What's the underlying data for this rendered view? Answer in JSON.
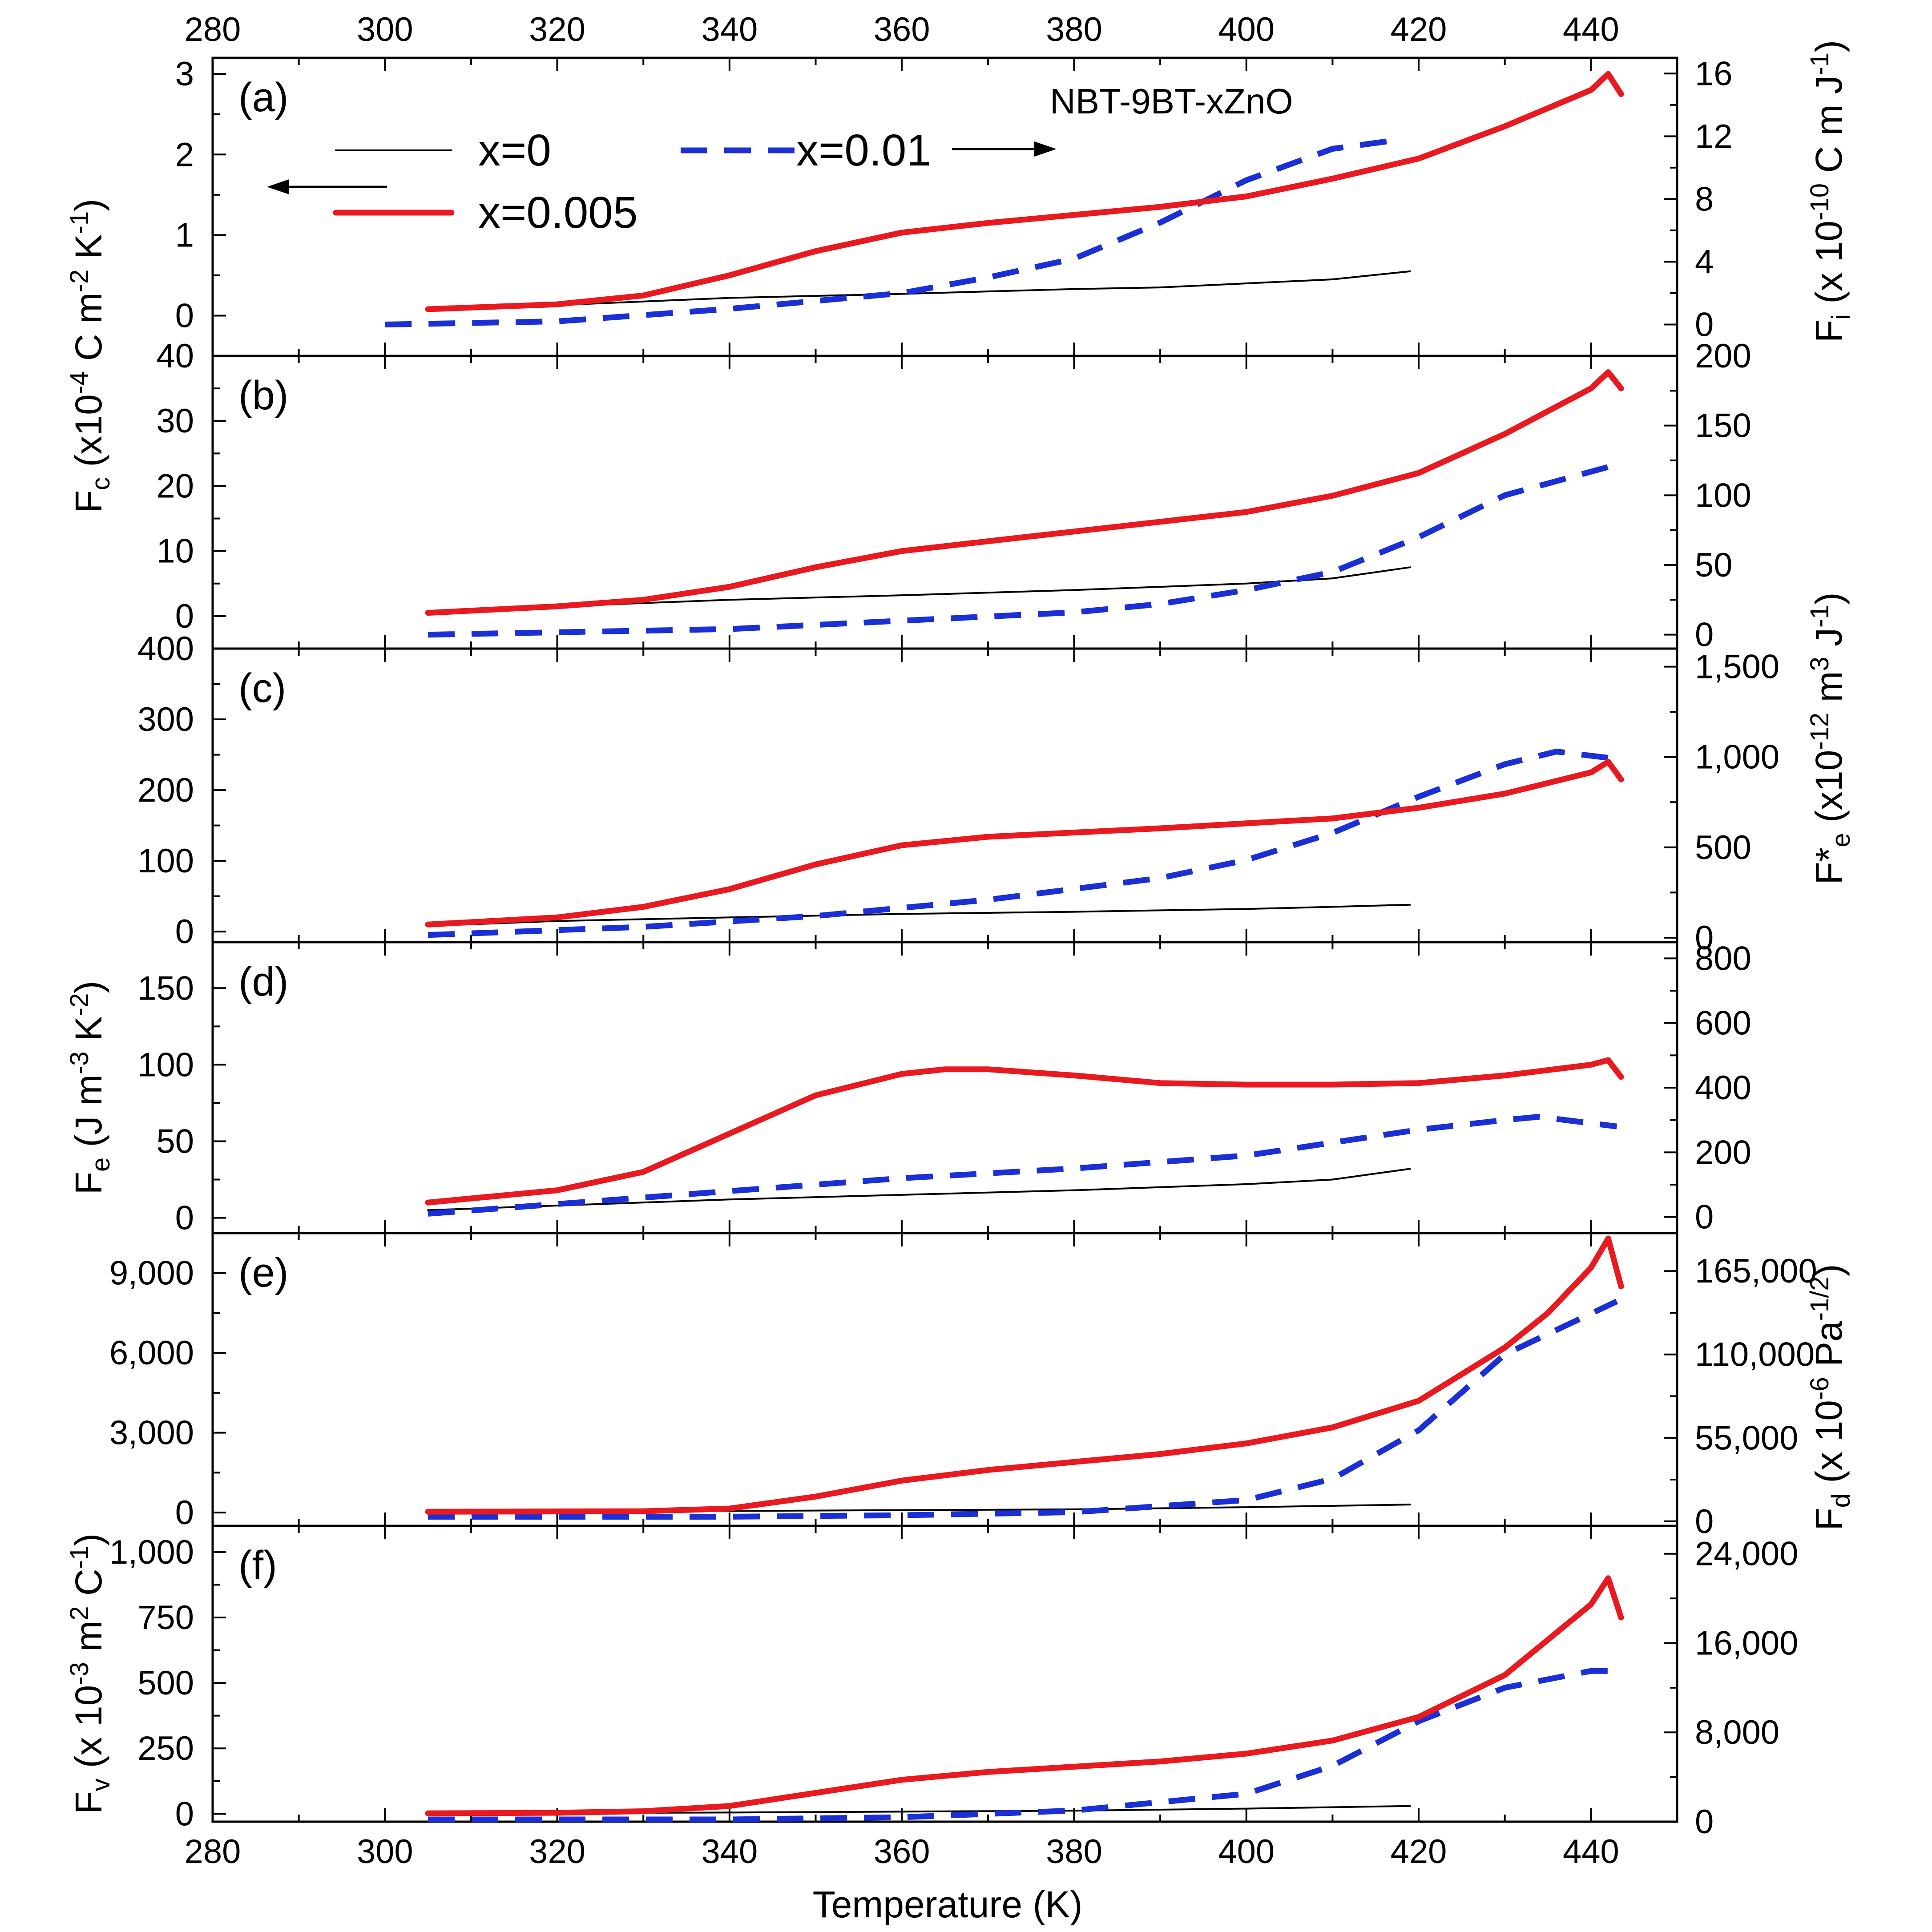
{
  "figure": {
    "title": "NBT-9BT-xZnO",
    "xlabel": "Temperature (K)",
    "x_ticks": [
      "280",
      "300",
      "320",
      "340",
      "360",
      "380",
      "400",
      "420",
      "440"
    ]
  },
  "legend": {
    "items": [
      {
        "label": "x=0",
        "color": "#000000",
        "style": "solid-thin"
      },
      {
        "label": "x=0.005",
        "color": "#e8191f",
        "style": "solid-thick"
      },
      {
        "label": "x=0.01",
        "color": "#1a2fd6",
        "style": "dashed"
      }
    ]
  },
  "chart_data": [
    {
      "panel": "(a)",
      "type": "line",
      "left_label": {
        "base": "F",
        "sub": "c",
        "unit_pre": " (x10",
        "exp": "-4",
        "unit_post": " C m",
        "exp2": "-2",
        "unit_post2": " K",
        "exp3": "-1",
        "close": ")"
      },
      "right_label": {
        "base": "F",
        "sub": "i",
        "unit_pre": " (x 10",
        "exp": "-10",
        "unit_post": " C m J",
        "exp2": "-1",
        "close": ")"
      },
      "x_range": [
        280,
        450
      ],
      "left_range": [
        -0.5,
        3.2
      ],
      "right_range": [
        -2,
        17
      ],
      "left_ticks": [
        "0",
        "1",
        "2",
        "3"
      ],
      "right_ticks": [
        "0",
        "4",
        "8",
        "12",
        "16"
      ],
      "series": [
        {
          "name": "x=0",
          "axis": "left",
          "x": [
            305,
            320,
            340,
            360,
            380,
            390,
            400,
            410,
            419
          ],
          "y": [
            0.08,
            0.13,
            0.22,
            0.27,
            0.33,
            0.35,
            0.4,
            0.45,
            0.55
          ]
        },
        {
          "name": "x=0.005",
          "axis": "left",
          "x": [
            305,
            320,
            330,
            340,
            350,
            360,
            370,
            380,
            390,
            400,
            410,
            420,
            430,
            440,
            442,
            443.5
          ],
          "y": [
            0.08,
            0.14,
            0.25,
            0.5,
            0.8,
            1.03,
            1.15,
            1.25,
            1.35,
            1.48,
            1.7,
            1.95,
            2.35,
            2.8,
            3.0,
            2.75
          ]
        },
        {
          "name": "x=0.01",
          "axis": "right",
          "x": [
            300,
            320,
            340,
            360,
            370,
            380,
            390,
            400,
            410,
            418
          ],
          "y": [
            0.0,
            0.2,
            1.0,
            2.0,
            3.0,
            4.2,
            6.5,
            9.2,
            11.2,
            11.8
          ]
        }
      ]
    },
    {
      "panel": "(b)",
      "type": "line",
      "right_label": null,
      "x_range": [
        280,
        450
      ],
      "left_range": [
        -5,
        40
      ],
      "right_range": [
        -10,
        200
      ],
      "left_ticks": [
        "0",
        "10",
        "20",
        "30",
        "40"
      ],
      "right_ticks": [
        "0",
        "50",
        "100",
        "150",
        "200"
      ],
      "series": [
        {
          "name": "x=0",
          "axis": "left",
          "x": [
            305,
            320,
            340,
            360,
            380,
            390,
            400,
            410,
            419
          ],
          "y": [
            0.5,
            1.5,
            2.5,
            3.2,
            4.0,
            4.5,
            5.0,
            5.8,
            7.5
          ]
        },
        {
          "name": "x=0.005",
          "axis": "left",
          "x": [
            305,
            320,
            330,
            340,
            350,
            360,
            370,
            380,
            390,
            400,
            410,
            420,
            430,
            440,
            442,
            443.5
          ],
          "y": [
            0.5,
            1.5,
            2.5,
            4.5,
            7.5,
            10.0,
            11.5,
            13.0,
            14.5,
            16.0,
            18.5,
            22.0,
            28.0,
            35.0,
            37.5,
            35.0
          ]
        },
        {
          "name": "x=0.01",
          "axis": "right",
          "x": [
            305,
            340,
            360,
            380,
            390,
            400,
            410,
            420,
            430,
            443
          ],
          "y": [
            0,
            4,
            10,
            16,
            22,
            32,
            45,
            70,
            100,
            122
          ]
        }
      ]
    },
    {
      "panel": "(c)",
      "type": "line",
      "right_label": {
        "base": "F*",
        "sub": "e",
        "unit_pre": " (x10",
        "exp": "-12",
        "unit_post": " m",
        "exp2": "3",
        "unit_post2": " J",
        "exp3": "-1",
        "close": ")"
      },
      "x_range": [
        280,
        450
      ],
      "left_range": [
        -15,
        400
      ],
      "right_range": [
        -25,
        1600
      ],
      "left_ticks": [
        "0",
        "100",
        "200",
        "300",
        "400"
      ],
      "right_ticks": [
        "0",
        "500",
        "1,000",
        "1,500"
      ],
      "series": [
        {
          "name": "x=0",
          "axis": "left",
          "x": [
            305,
            320,
            340,
            360,
            380,
            390,
            400,
            410,
            419
          ],
          "y": [
            8,
            15,
            20,
            25,
            28,
            30,
            32,
            35,
            38
          ]
        },
        {
          "name": "x=0.005",
          "axis": "left",
          "x": [
            305,
            320,
            330,
            340,
            350,
            360,
            370,
            380,
            390,
            400,
            410,
            420,
            430,
            440,
            442,
            443.5
          ],
          "y": [
            10,
            20,
            35,
            60,
            95,
            122,
            134,
            140,
            146,
            153,
            160,
            175,
            195,
            225,
            240,
            215
          ]
        },
        {
          "name": "x=0.01",
          "axis": "right",
          "x": [
            305,
            330,
            350,
            370,
            390,
            400,
            410,
            420,
            430,
            436,
            443
          ],
          "y": [
            15,
            60,
            120,
            210,
            330,
            430,
            580,
            780,
            960,
            1030,
            990
          ]
        }
      ]
    },
    {
      "panel": "(d)",
      "type": "line",
      "left_label": {
        "base": "F",
        "sub": "e",
        "unit_pre": " (J m",
        "exp": "-3",
        "unit_post": " K",
        "exp2": "-2",
        "close": ")"
      },
      "right_label": null,
      "x_range": [
        280,
        450
      ],
      "left_range": [
        -10,
        180
      ],
      "right_range": [
        -50,
        850
      ],
      "left_ticks": [
        "0",
        "50",
        "100",
        "150"
      ],
      "right_ticks": [
        "0",
        "200",
        "400",
        "600",
        "800"
      ],
      "series": [
        {
          "name": "x=0",
          "axis": "left",
          "x": [
            305,
            320,
            340,
            360,
            380,
            390,
            400,
            410,
            419
          ],
          "y": [
            5,
            8,
            12,
            15,
            18,
            20,
            22,
            25,
            32
          ]
        },
        {
          "name": "x=0.005",
          "axis": "left",
          "x": [
            305,
            320,
            330,
            340,
            350,
            360,
            365,
            370,
            380,
            390,
            400,
            410,
            420,
            430,
            440,
            442,
            443.5
          ],
          "y": [
            10,
            18,
            30,
            55,
            80,
            94,
            97,
            97,
            93,
            88,
            87,
            87,
            88,
            93,
            100,
            103,
            92
          ]
        },
        {
          "name": "x=0.01",
          "axis": "right",
          "x": [
            305,
            320,
            340,
            360,
            380,
            400,
            410,
            420,
            430,
            434,
            443
          ],
          "y": [
            10,
            40,
            80,
            120,
            150,
            190,
            230,
            270,
            300,
            310,
            280
          ]
        }
      ]
    },
    {
      "panel": "(e)",
      "type": "line",
      "right_label": {
        "base": "F",
        "sub": "d",
        "unit_pre": " (x 10",
        "exp": "-6",
        "unit_post": " Pa",
        "exp2": "-1/2",
        "close": ")"
      },
      "x_range": [
        280,
        450
      ],
      "left_range": [
        -500,
        10500
      ],
      "right_range": [
        -3000,
        190000
      ],
      "left_ticks": [
        "0",
        "3,000",
        "6,000",
        "9,000"
      ],
      "right_ticks": [
        "0",
        "55,000",
        "110,000",
        "165,000"
      ],
      "series": [
        {
          "name": "x=0",
          "axis": "left",
          "x": [
            305,
            340,
            380,
            400,
            419
          ],
          "y": [
            30,
            60,
            120,
            200,
            300
          ]
        },
        {
          "name": "x=0.005",
          "axis": "left",
          "x": [
            305,
            330,
            340,
            350,
            360,
            370,
            380,
            390,
            400,
            410,
            420,
            430,
            435,
            440,
            442,
            443.5
          ],
          "y": [
            30,
            50,
            150,
            600,
            1200,
            1600,
            1900,
            2200,
            2600,
            3200,
            4200,
            6200,
            7500,
            9200,
            10300,
            8500
          ]
        },
        {
          "name": "x=0.01",
          "axis": "right",
          "x": [
            305,
            340,
            360,
            380,
            400,
            410,
            420,
            430,
            443
          ],
          "y": [
            3000,
            3000,
            4000,
            6000,
            14000,
            28000,
            60000,
            110000,
            145000
          ]
        }
      ]
    },
    {
      "panel": "(f)",
      "type": "line",
      "left_label": {
        "base": "F",
        "sub": "v",
        "unit_pre": " (x 10",
        "exp": "-3",
        "unit_post": " m",
        "exp2": "2",
        "unit_post2": " C",
        "exp3": "-1",
        "close": ")"
      },
      "right_label": null,
      "x_range": [
        280,
        450
      ],
      "left_range": [
        -30,
        1100
      ],
      "right_range": [
        0,
        26500
      ],
      "left_ticks": [
        "0",
        "250",
        "500",
        "750",
        "1,000"
      ],
      "right_ticks": [
        "0",
        "8,000",
        "16,000",
        "24,000"
      ],
      "series": [
        {
          "name": "x=0",
          "axis": "left",
          "x": [
            305,
            340,
            380,
            400,
            419
          ],
          "y": [
            2,
            5,
            12,
            20,
            30
          ]
        },
        {
          "name": "x=0.005",
          "axis": "left",
          "x": [
            305,
            320,
            330,
            340,
            350,
            360,
            370,
            380,
            390,
            400,
            410,
            420,
            430,
            440,
            442,
            443.5
          ],
          "y": [
            2,
            4,
            10,
            30,
            80,
            130,
            160,
            180,
            200,
            230,
            280,
            370,
            530,
            800,
            900,
            750
          ]
        },
        {
          "name": "x=0.01",
          "axis": "right",
          "x": [
            305,
            340,
            360,
            380,
            400,
            410,
            420,
            430,
            440,
            443
          ],
          "y": [
            200,
            200,
            400,
            1000,
            2500,
            5000,
            9000,
            12000,
            13500,
            13500
          ]
        }
      ]
    }
  ]
}
